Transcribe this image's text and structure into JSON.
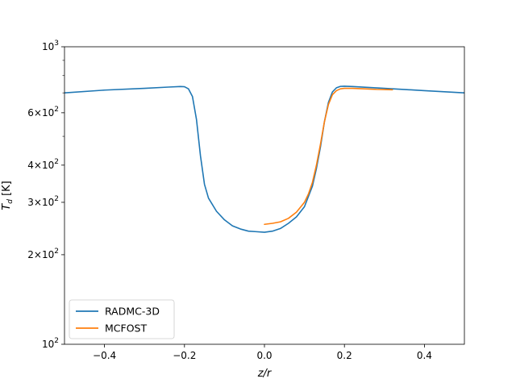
{
  "chart_data": {
    "type": "line",
    "title": "",
    "xlabel": "z/r",
    "ylabel": "T_d [K]",
    "xlim": [
      -0.5,
      0.5
    ],
    "ylim": [
      100,
      1000
    ],
    "yscale": "log",
    "grid": false,
    "legend_position": "lower-left",
    "x_ticks": [
      -0.4,
      -0.2,
      0.0,
      0.2,
      0.4
    ],
    "x_tick_labels": [
      "−0.4",
      "−0.2",
      "0.0",
      "0.2",
      "0.4"
    ],
    "y_ticks": [
      {
        "value": 100,
        "mantissa": "",
        "exp": "2"
      },
      {
        "value": 200,
        "mantissa": "2×",
        "exp": "2"
      },
      {
        "value": 300,
        "mantissa": "3×",
        "exp": "2"
      },
      {
        "value": 400,
        "mantissa": "4×",
        "exp": "2"
      },
      {
        "value": 600,
        "mantissa": "6×",
        "exp": "2"
      },
      {
        "value": 1000,
        "mantissa": "",
        "exp": "3"
      }
    ],
    "y_minor_ticks": [
      500,
      700,
      800,
      900
    ],
    "series": [
      {
        "name": "RADMC-3D",
        "color": "#1f77b4",
        "x": [
          -0.5,
          -0.4,
          -0.3,
          -0.24,
          -0.21,
          -0.2,
          -0.19,
          -0.18,
          -0.17,
          -0.16,
          -0.15,
          -0.14,
          -0.12,
          -0.1,
          -0.08,
          -0.06,
          -0.04,
          -0.02,
          0.0,
          0.02,
          0.04,
          0.06,
          0.08,
          0.1,
          0.12,
          0.13,
          0.14,
          0.15,
          0.16,
          0.17,
          0.18,
          0.19,
          0.2,
          0.22,
          0.3,
          0.4,
          0.5
        ],
        "y": [
          700,
          715,
          725,
          732,
          735,
          734,
          722,
          680,
          570,
          430,
          345,
          310,
          280,
          262,
          250,
          244,
          240,
          239,
          238,
          240,
          245,
          255,
          268,
          290,
          340,
          390,
          460,
          560,
          650,
          705,
          728,
          736,
          737,
          735,
          725,
          712,
          700
        ]
      },
      {
        "name": "MCFOST",
        "color": "#ff7f0e",
        "x": [
          0.0,
          0.02,
          0.04,
          0.06,
          0.08,
          0.1,
          0.11,
          0.12,
          0.13,
          0.14,
          0.15,
          0.16,
          0.17,
          0.18,
          0.19,
          0.2,
          0.22,
          0.25,
          0.28,
          0.32
        ],
        "y": [
          253,
          255,
          258,
          265,
          278,
          300,
          320,
          350,
          400,
          470,
          560,
          640,
          690,
          712,
          722,
          725,
          725,
          722,
          719,
          717
        ]
      }
    ]
  }
}
